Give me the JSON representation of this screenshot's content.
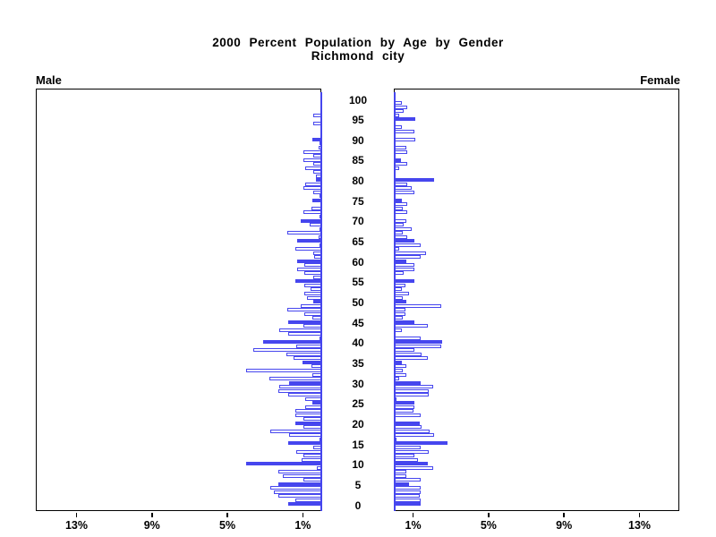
{
  "title": {
    "line1": "2000 Percent Population by Age by Gender",
    "line2": "Richmond city"
  },
  "panel_labels": {
    "male": "Male",
    "female": "Female"
  },
  "colors": {
    "bar_blue": "#4646ee",
    "axis_black": "#000000",
    "background": "#ffffff"
  },
  "chart_data": {
    "type": "bar",
    "subtype": "population-pyramid",
    "title": "2000 Percent Population by Age by Gender",
    "subtitle": "Richmond city",
    "orientation": "horizontal, male bars grow left, female bars grow right",
    "age_min": 0,
    "age_max": 100,
    "age_axis_ticks": [
      0,
      5,
      10,
      15,
      20,
      25,
      30,
      35,
      40,
      45,
      50,
      55,
      60,
      65,
      70,
      75,
      80,
      85,
      90,
      95,
      100
    ],
    "pct_axis_ticks": [
      1,
      5,
      9,
      13
    ],
    "pct_axis_tick_labels_male": [
      "13%",
      "9%",
      "5%",
      "1%"
    ],
    "pct_axis_tick_labels_female": [
      "1%",
      "5%",
      "9%",
      "13%"
    ],
    "pct_axis_max": 15.1,
    "grid": "off",
    "legend": "none",
    "bar_style_note": "one bar per single year of age; bars at filled_ages are solid blue, others hollow with blue outline",
    "series": [
      {
        "name": "Male",
        "ages": "index equals age 0..100",
        "values": [
          1.79,
          1.39,
          2.29,
          2.53,
          2.72,
          2.29,
          0.95,
          2.05,
          2.29,
          0.25,
          4.03,
          1.06,
          0.95,
          1.34,
          0.44,
          1.79,
          0.1,
          1.71,
          2.72,
          0.95,
          1.39,
          0.95,
          1.39,
          1.39,
          0.87,
          0.52,
          0.9,
          1.79,
          2.29,
          2.26,
          1.74,
          2.77,
          0.51,
          4.03,
          0.55,
          1.03,
          1.48,
          1.89,
          3.63,
          1.34,
          3.13,
          0.1,
          1.79,
          2.26,
          0.95,
          1.8,
          0.52,
          0.92,
          1.82,
          1.11,
          0.45,
          0.79,
          0.92,
          0.6,
          0.92,
          1.42,
          0.47,
          0.92,
          1.29,
          0.92,
          1.29,
          0.4,
          0.43,
          1.42,
          0.1,
          1.29,
          0.15,
          1.81,
          0.1,
          0.66,
          1.1,
          0.1,
          0.98,
          0.55,
          0.05,
          0.5,
          0.1,
          0.45,
          0.95,
          0.9,
          0.3,
          0.3,
          0.45,
          0.87,
          0.47,
          0.98,
          0.47,
          0.95,
          0.15,
          0.1,
          0.52,
          0.05,
          0.05,
          0.05,
          0.45,
          0.05,
          0.45,
          0.05,
          0.05,
          0.05,
          0.02
        ],
        "filled_ages": [
          0,
          5,
          10,
          15,
          20,
          25,
          30,
          35,
          40,
          45,
          50,
          55,
          60,
          65,
          70,
          75,
          80,
          90
        ]
      },
      {
        "name": "Female",
        "ages": "index equals age 0..100",
        "values": [
          1.39,
          1.39,
          1.34,
          1.39,
          1.39,
          0.76,
          1.42,
          0.63,
          0.66,
          2.08,
          1.78,
          1.26,
          1.07,
          1.82,
          1.42,
          2.84,
          0.1,
          2.13,
          1.87,
          1.45,
          1.34,
          0.05,
          1.42,
          1.02,
          1.07,
          1.07,
          0.1,
          1.82,
          1.85,
          2.08,
          1.42,
          0.28,
          0.66,
          0.47,
          0.63,
          0.4,
          1.78,
          1.45,
          1.07,
          2.5,
          2.53,
          1.42,
          0.05,
          0.4,
          1.78,
          1.07,
          0.47,
          0.6,
          0.6,
          2.5,
          0.66,
          0.47,
          0.76,
          0.4,
          0.6,
          1.06,
          0.05,
          0.51,
          1.06,
          1.06,
          0.66,
          1.39,
          1.7,
          0.28,
          1.39,
          1.06,
          0.71,
          0.44,
          0.92,
          0.51,
          0.66,
          0.05,
          0.71,
          0.44,
          0.71,
          0.4,
          0.05,
          1.06,
          0.92,
          0.71,
          2.13,
          0.05,
          0.05,
          0.28,
          0.71,
          0.35,
          0.05,
          0.71,
          0.66,
          0.05,
          1.11,
          0.05,
          1.07,
          0.4,
          0.05,
          1.11,
          0.28,
          0.51,
          0.71,
          0.4,
          0.05
        ],
        "filled_ages": [
          0,
          5,
          10,
          15,
          20,
          25,
          30,
          35,
          40,
          45,
          50,
          55,
          60,
          65,
          75,
          80,
          85,
          95
        ]
      }
    ]
  }
}
